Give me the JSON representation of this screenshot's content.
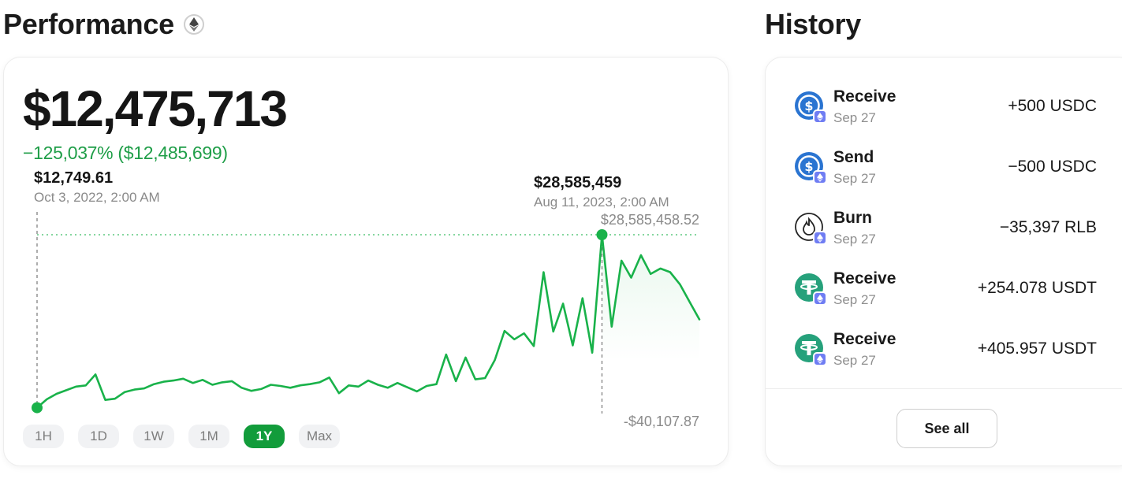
{
  "performance": {
    "title": "Performance",
    "title_icon": "ethereum-icon",
    "balance": "$12,475,713",
    "change": "−125,037% ($12,485,699)",
    "start_tip": {
      "value": "$12,749.61",
      "date": "Oct 3, 2022, 2:00 AM"
    },
    "peak_tip": {
      "value": "$28,585,459",
      "date": "Aug 11, 2023, 2:00 AM"
    },
    "max_label": "$28,585,458.52",
    "min_label": "-$40,107.87",
    "ranges": [
      "1H",
      "1D",
      "1W",
      "1M",
      "1Y",
      "Max"
    ],
    "active_range": "1Y",
    "accent_color": "#19b24a"
  },
  "chart_data": {
    "type": "line",
    "title": "",
    "xlabel": "",
    "ylabel": "",
    "x_range": [
      "Oct 3, 2022",
      "Sep 27, 2023"
    ],
    "ylim": [
      -40107.87,
      28585458.52
    ],
    "grid": false,
    "series": [
      {
        "values": [
          12749.61,
          1400000,
          2300000,
          2900000,
          3500000,
          3700000,
          5500000,
          1300000,
          1500000,
          2600000,
          3000000,
          3200000,
          3900000,
          4300000,
          4500000,
          4800000,
          4100000,
          4600000,
          3800000,
          4200000,
          4400000,
          3300000,
          2800000,
          3100000,
          3800000,
          3600000,
          3300000,
          3700000,
          3900000,
          4200000,
          5000000,
          2400000,
          3700000,
          3500000,
          4500000,
          3800000,
          3300000,
          4100000,
          3400000,
          2700000,
          3600000,
          3900000,
          8800000,
          4400000,
          8300000,
          4700000,
          4900000,
          7900000,
          12700000,
          11300000,
          12300000,
          10200000,
          22400000,
          12600000,
          17200000,
          10300000,
          18100000,
          9100000,
          28585458.52,
          13400000,
          24300000,
          21500000,
          25200000,
          22100000,
          23000000,
          22400000,
          20400000,
          17500000,
          14600000
        ]
      }
    ],
    "annotations": [
      {
        "label": "$12,749.61",
        "date": "Oct 3, 2022, 2:00 AM"
      },
      {
        "label": "$28,585,459",
        "date": "Aug 11, 2023, 2:00 AM"
      }
    ]
  },
  "history": {
    "title": "History",
    "items": [
      {
        "type": "Receive",
        "date": "Sep 27",
        "amount": "+500 USDC",
        "icon": "usdc-icon"
      },
      {
        "type": "Send",
        "date": "Sep 27",
        "amount": "−500 USDC",
        "icon": "usdc-icon"
      },
      {
        "type": "Burn",
        "date": "Sep 27",
        "amount": "−35,397 RLB",
        "icon": "burn-token-icon"
      },
      {
        "type": "Receive",
        "date": "Sep 27",
        "amount": "+254.078 USDT",
        "icon": "tether-icon"
      },
      {
        "type": "Receive",
        "date": "Sep 27",
        "amount": "+405.957 USDT",
        "icon": "tether-icon"
      }
    ],
    "see_all_label": "See all"
  }
}
